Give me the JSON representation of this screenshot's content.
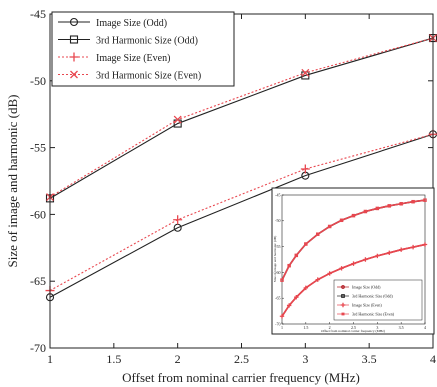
{
  "chart_data": [
    {
      "type": "line",
      "title": "",
      "xlabel": "Offset from nominal carrier frequency (MHz)",
      "ylabel": "Size of image and harmonic (dB)",
      "xlim": [
        1,
        4
      ],
      "ylim": [
        -70,
        -45
      ],
      "xticks": [
        1,
        1.5,
        2,
        2.5,
        3,
        3.5,
        4
      ],
      "xtick_labels": [
        "1",
        "1.5",
        "2",
        "2.5",
        "3",
        "3.5",
        "4"
      ],
      "yticks": [
        -70,
        -65,
        -60,
        -55,
        -50,
        -45
      ],
      "ytick_labels": [
        "-70",
        "-65",
        "-60",
        "-55",
        "-50",
        "-45"
      ],
      "grid": false,
      "legend_position": "top-left",
      "series": [
        {
          "name": "Image Size (Odd)",
          "x": [
            1,
            2,
            3,
            4
          ],
          "y": [
            -66.2,
            -61.0,
            -57.1,
            -54.0
          ],
          "color": "#222222",
          "dash": "solid",
          "marker": "circle"
        },
        {
          "name": "3rd Harmonic Size (Odd)",
          "x": [
            1,
            2,
            3,
            4
          ],
          "y": [
            -58.8,
            -53.2,
            -49.6,
            -46.8
          ],
          "color": "#222222",
          "dash": "solid",
          "marker": "square"
        },
        {
          "name": "Image Size (Even)",
          "x": [
            1,
            2,
            3,
            4
          ],
          "y": [
            -65.7,
            -60.4,
            -56.6,
            -54.0
          ],
          "color": "#e8474f",
          "dash": "dotted",
          "marker": "plus"
        },
        {
          "name": "3rd Harmonic Size (Even)",
          "x": [
            1,
            2,
            3,
            4
          ],
          "y": [
            -58.7,
            -52.9,
            -49.4,
            -46.8
          ],
          "color": "#e8474f",
          "dash": "dotted",
          "marker": "x"
        }
      ]
    },
    {
      "type": "line",
      "title": "",
      "xlabel": "Offset from nominal carrier frequency (MHz)",
      "ylabel": "Size of image and harmonic (dB)",
      "xlim": [
        1,
        4
      ],
      "ylim": [
        -70,
        -45
      ],
      "xticks": [
        1,
        1.5,
        2,
        2.5,
        3,
        3.5,
        4
      ],
      "xtick_labels": [
        "1",
        "1.5",
        "2",
        "2.5",
        "3",
        "3.5",
        "4"
      ],
      "yticks": [
        -70,
        -65,
        -60,
        -55,
        -50,
        -45
      ],
      "ytick_labels": [
        "-70",
        "-65",
        "-60",
        "-55",
        "-50",
        "-45"
      ],
      "legend_position": "bottom-right",
      "series": [
        {
          "name": "Image Size (Odd)",
          "x": [
            1,
            1.15,
            1.3,
            1.5,
            1.75,
            2,
            2.25,
            2.5,
            2.75,
            3,
            3.25,
            3.5,
            3.75,
            4
          ],
          "y": [
            -68.5,
            -66.4,
            -64.8,
            -63.0,
            -61.4,
            -60.2,
            -59.2,
            -58.3,
            -57.5,
            -56.8,
            -56.2,
            -55.6,
            -55.1,
            -54.6
          ],
          "color": "#b0171f"
        },
        {
          "name": "3rd Harmonic Size (Odd)",
          "x": [
            1,
            1.15,
            1.3,
            1.5,
            1.75,
            2,
            2.25,
            2.5,
            2.75,
            3,
            3.25,
            3.5,
            3.75,
            4
          ],
          "y": [
            -61.5,
            -58.7,
            -56.7,
            -54.5,
            -52.6,
            -51.1,
            -49.9,
            -49.0,
            -48.2,
            -47.6,
            -47.1,
            -46.7,
            -46.3,
            -46.0
          ],
          "color": "#222222"
        },
        {
          "name": "Image Size (Even)",
          "x": [
            1,
            1.15,
            1.3,
            1.5,
            1.75,
            2,
            2.25,
            2.5,
            2.75,
            3,
            3.25,
            3.5,
            3.75,
            4
          ],
          "y": [
            -68.5,
            -66.4,
            -64.8,
            -63.0,
            -61.4,
            -60.2,
            -59.2,
            -58.3,
            -57.5,
            -56.8,
            -56.2,
            -55.6,
            -55.1,
            -54.6
          ],
          "color": "#e8474f"
        },
        {
          "name": "3rd Harmonic Size (Even)",
          "x": [
            1,
            1.15,
            1.3,
            1.5,
            1.75,
            2,
            2.25,
            2.5,
            2.75,
            3,
            3.25,
            3.5,
            3.75,
            4
          ],
          "y": [
            -61.5,
            -58.7,
            -56.7,
            -54.5,
            -52.6,
            -51.1,
            -49.9,
            -49.0,
            -48.2,
            -47.6,
            -47.1,
            -46.7,
            -46.3,
            -46.0
          ],
          "color": "#e8474f"
        }
      ]
    }
  ]
}
